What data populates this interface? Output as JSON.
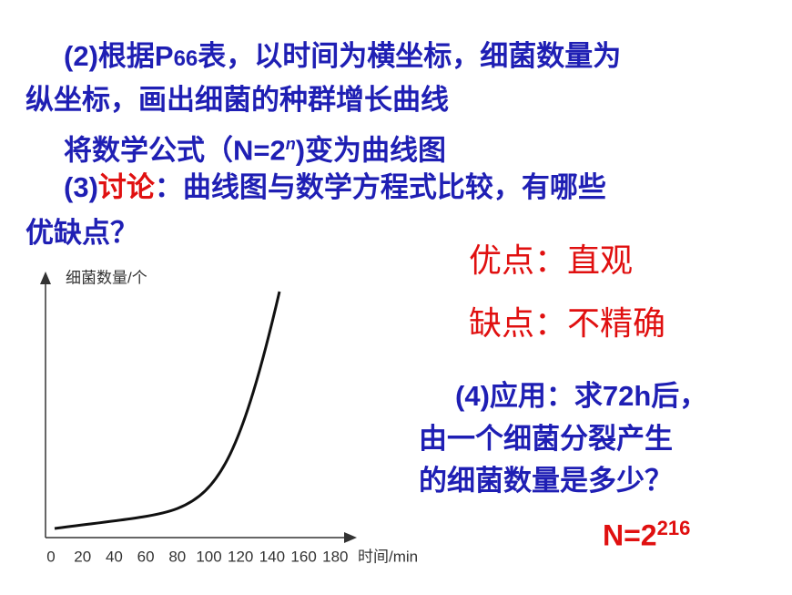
{
  "q2_line1": [
    "(2)根据P",
    "66",
    "表，以时间为横坐标，细菌数量为"
  ],
  "q2_line2": "纵坐标，画出细菌的种群增长曲线",
  "formula_line": [
    "将数学公式（N=2",
    "n",
    ")变为曲线图"
  ],
  "q3_line1": [
    "(3)",
    "讨论",
    "：曲线图与数学方程式比较，有哪些"
  ],
  "q3_line2": "优缺点？",
  "advantage": "优点：直观",
  "disadvantage": "缺点：不精确",
  "q4_lines": [
    "(4)应用：求72h后，",
    "由一个细菌分裂产生",
    "的细菌数量是多少？"
  ],
  "answer": [
    "N=2",
    "216"
  ],
  "figure": {
    "y_label": "细菌数量/个",
    "x_label": "时间/min",
    "x_ticks": [
      "0",
      "20",
      "40",
      "60",
      "80",
      "100",
      "120",
      "140",
      "160",
      "180"
    ]
  }
}
